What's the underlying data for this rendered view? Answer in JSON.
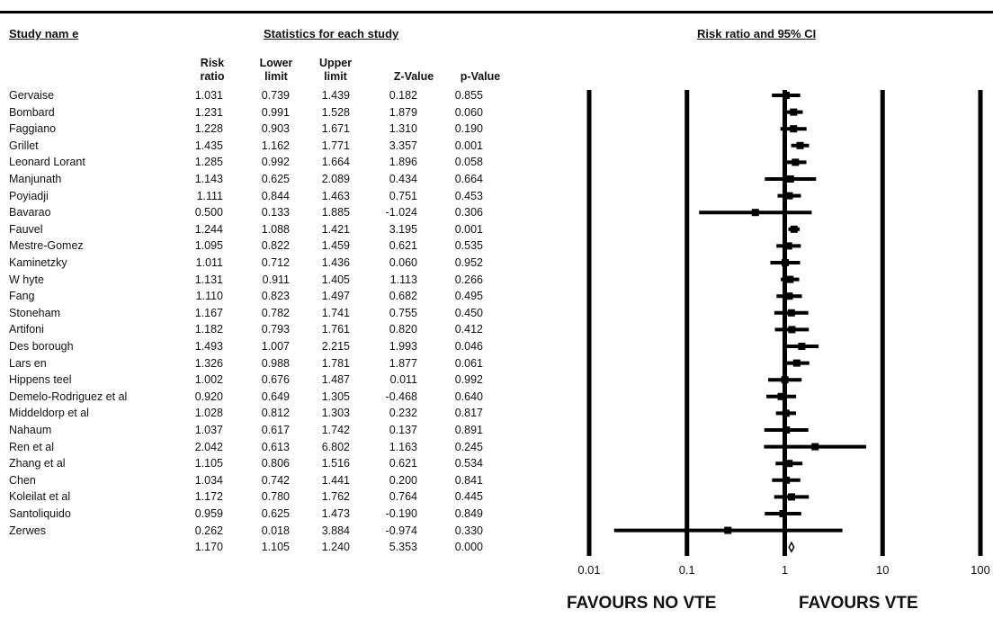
{
  "headers": {
    "study_name": "Study nam e",
    "statistics": "Statistics for each study",
    "risk_ratio_ci": "Risk ratio and 95% CI",
    "col_rr": "Risk\nratio",
    "col_lower": "Lower\nlimit",
    "col_upper": "Upper\nlimit",
    "col_z": "Z-Value",
    "col_p": "p-Value"
  },
  "studies": [
    {
      "name": "Gervaise",
      "rr": "1.031",
      "lower": "0.739",
      "upper": "1.439",
      "z": "0.182",
      "p": "0.855"
    },
    {
      "name": "Bombard",
      "rr": "1.231",
      "lower": "0.991",
      "upper": "1.528",
      "z": "1.879",
      "p": "0.060"
    },
    {
      "name": "Faggiano",
      "rr": "1.228",
      "lower": "0.903",
      "upper": "1.671",
      "z": "1.310",
      "p": "0.190"
    },
    {
      "name": "Grillet",
      "rr": "1.435",
      "lower": "1.162",
      "upper": "1.771",
      "z": "3.357",
      "p": "0.001"
    },
    {
      "name": "Leonard Lorant",
      "rr": "1.285",
      "lower": "0.992",
      "upper": "1.664",
      "z": "1.896",
      "p": "0.058"
    },
    {
      "name": "Manjunath",
      "rr": "1.143",
      "lower": "0.625",
      "upper": "2.089",
      "z": "0.434",
      "p": "0.664"
    },
    {
      "name": "Poyiadji",
      "rr": "1.111",
      "lower": "0.844",
      "upper": "1.463",
      "z": "0.751",
      "p": "0.453"
    },
    {
      "name": "Bavarao",
      "rr": "0.500",
      "lower": "0.133",
      "upper": "1.885",
      "z": "-1.024",
      "p": "0.306"
    },
    {
      "name": "Fauvel",
      "rr": "1.244",
      "lower": "1.088",
      "upper": "1.421",
      "z": "3.195",
      "p": "0.001"
    },
    {
      "name": "Mestre-Gomez",
      "rr": "1.095",
      "lower": "0.822",
      "upper": "1.459",
      "z": "0.621",
      "p": "0.535"
    },
    {
      "name": "Kaminetzky",
      "rr": "1.011",
      "lower": "0.712",
      "upper": "1.436",
      "z": "0.060",
      "p": "0.952"
    },
    {
      "name": "W hyte",
      "rr": "1.131",
      "lower": "0.911",
      "upper": "1.405",
      "z": "1.113",
      "p": "0.266"
    },
    {
      "name": "Fang",
      "rr": "1.110",
      "lower": "0.823",
      "upper": "1.497",
      "z": "0.682",
      "p": "0.495"
    },
    {
      "name": "Stoneham",
      "rr": "1.167",
      "lower": "0.782",
      "upper": "1.741",
      "z": "0.755",
      "p": "0.450"
    },
    {
      "name": "Artifoni",
      "rr": "1.182",
      "lower": "0.793",
      "upper": "1.761",
      "z": "0.820",
      "p": "0.412"
    },
    {
      "name": "Des borough",
      "rr": "1.493",
      "lower": "1.007",
      "upper": "2.215",
      "z": "1.993",
      "p": "0.046"
    },
    {
      "name": "Lars en",
      "rr": "1.326",
      "lower": "0.988",
      "upper": "1.781",
      "z": "1.877",
      "p": "0.061"
    },
    {
      "name": "Hippens teel",
      "rr": "1.002",
      "lower": "0.676",
      "upper": "1.487",
      "z": "0.011",
      "p": "0.992"
    },
    {
      "name": "Demelo-Rodriguez et al",
      "rr": "0.920",
      "lower": "0.649",
      "upper": "1.305",
      "z": "-0.468",
      "p": "0.640"
    },
    {
      "name": "Middeldorp et al",
      "rr": "1.028",
      "lower": "0.812",
      "upper": "1.303",
      "z": "0.232",
      "p": "0.817"
    },
    {
      "name": "Nahaum",
      "rr": "1.037",
      "lower": "0.617",
      "upper": "1.742",
      "z": "0.137",
      "p": "0.891"
    },
    {
      "name": "Ren et al",
      "rr": "2.042",
      "lower": "0.613",
      "upper": "6.802",
      "z": "1.163",
      "p": "0.245"
    },
    {
      "name": "Zhang et al",
      "rr": "1.105",
      "lower": "0.806",
      "upper": "1.516",
      "z": "0.621",
      "p": "0.534"
    },
    {
      "name": "Chen",
      "rr": "1.034",
      "lower": "0.742",
      "upper": "1.441",
      "z": "0.200",
      "p": "0.841"
    },
    {
      "name": "Koleilat et al",
      "rr": "1.172",
      "lower": "0.780",
      "upper": "1.762",
      "z": "0.764",
      "p": "0.445"
    },
    {
      "name": "Santoliquido",
      "rr": "0.959",
      "lower": "0.625",
      "upper": "1.473",
      "z": "-0.190",
      "p": "0.849"
    },
    {
      "name": "Zerwes",
      "rr": "0.262",
      "lower": "0.018",
      "upper": "3.884",
      "z": "-0.974",
      "p": "0.330"
    }
  ],
  "summary": {
    "name": "",
    "rr": "1.170",
    "lower": "1.105",
    "upper": "1.240",
    "z": "5.353",
    "p": "0.000"
  },
  "axis_ticks": [
    "0.01",
    "0.1",
    "1",
    "10",
    "100"
  ],
  "favours_left": "FAVOURS NO VTE",
  "favours_right": "FAVOURS VTE",
  "chart_data": {
    "type": "forest",
    "x_scale": "log",
    "xlim": [
      0.01,
      100
    ],
    "ticks": [
      0.01,
      0.1,
      1,
      10,
      100
    ],
    "reference_line": 1,
    "studies": [
      {
        "name": "Gervaise",
        "rr": 1.031,
        "lower": 0.739,
        "upper": 1.439
      },
      {
        "name": "Bombard",
        "rr": 1.231,
        "lower": 0.991,
        "upper": 1.528
      },
      {
        "name": "Faggiano",
        "rr": 1.228,
        "lower": 0.903,
        "upper": 1.671
      },
      {
        "name": "Grillet",
        "rr": 1.435,
        "lower": 1.162,
        "upper": 1.771
      },
      {
        "name": "Leonard Lorant",
        "rr": 1.285,
        "lower": 0.992,
        "upper": 1.664
      },
      {
        "name": "Manjunath",
        "rr": 1.143,
        "lower": 0.625,
        "upper": 2.089
      },
      {
        "name": "Poyiadji",
        "rr": 1.111,
        "lower": 0.844,
        "upper": 1.463
      },
      {
        "name": "Bavarao",
        "rr": 0.5,
        "lower": 0.133,
        "upper": 1.885
      },
      {
        "name": "Fauvel",
        "rr": 1.244,
        "lower": 1.088,
        "upper": 1.421
      },
      {
        "name": "Mestre-Gomez",
        "rr": 1.095,
        "lower": 0.822,
        "upper": 1.459
      },
      {
        "name": "Kaminetzky",
        "rr": 1.011,
        "lower": 0.712,
        "upper": 1.436
      },
      {
        "name": "W hyte",
        "rr": 1.131,
        "lower": 0.911,
        "upper": 1.405
      },
      {
        "name": "Fang",
        "rr": 1.11,
        "lower": 0.823,
        "upper": 1.497
      },
      {
        "name": "Stoneham",
        "rr": 1.167,
        "lower": 0.782,
        "upper": 1.741
      },
      {
        "name": "Artifoni",
        "rr": 1.182,
        "lower": 0.793,
        "upper": 1.761
      },
      {
        "name": "Des borough",
        "rr": 1.493,
        "lower": 1.007,
        "upper": 2.215
      },
      {
        "name": "Lars en",
        "rr": 1.326,
        "lower": 0.988,
        "upper": 1.781
      },
      {
        "name": "Hippens teel",
        "rr": 1.002,
        "lower": 0.676,
        "upper": 1.487
      },
      {
        "name": "Demelo-Rodriguez et al",
        "rr": 0.92,
        "lower": 0.649,
        "upper": 1.305
      },
      {
        "name": "Middeldorp et al",
        "rr": 1.028,
        "lower": 0.812,
        "upper": 1.303
      },
      {
        "name": "Nahaum",
        "rr": 1.037,
        "lower": 0.617,
        "upper": 1.742
      },
      {
        "name": "Ren et al",
        "rr": 2.042,
        "lower": 0.613,
        "upper": 6.802
      },
      {
        "name": "Zhang et al",
        "rr": 1.105,
        "lower": 0.806,
        "upper": 1.516
      },
      {
        "name": "Chen",
        "rr": 1.034,
        "lower": 0.742,
        "upper": 1.441
      },
      {
        "name": "Koleilat et al",
        "rr": 1.172,
        "lower": 0.78,
        "upper": 1.762
      },
      {
        "name": "Santoliquido",
        "rr": 0.959,
        "lower": 0.625,
        "upper": 1.473
      },
      {
        "name": "Zerwes",
        "rr": 0.262,
        "lower": 0.018,
        "upper": 3.884
      }
    ],
    "pooled": {
      "rr": 1.17,
      "lower": 1.105,
      "upper": 1.24
    }
  }
}
